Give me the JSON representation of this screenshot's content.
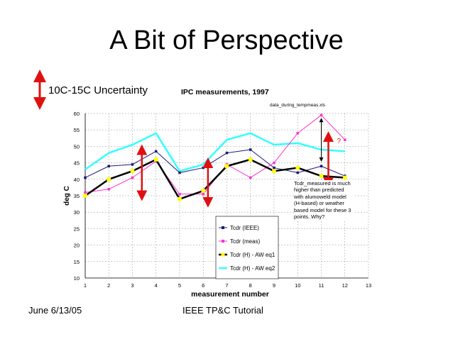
{
  "slide": {
    "title": "A Bit of Perspective",
    "uncertainty_label": "10C-15C Uncertainty",
    "footer_left": "June 6/13/05",
    "footer_center": "IEEE TP&C Tutorial"
  },
  "colors": {
    "ieee": "#1a1a7a",
    "meas": "#ff33cc",
    "aw_eq1": "#000000",
    "aw_eq1_marker": "#ffff00",
    "aw_eq2": "#33ffff",
    "arrow": "#e01010",
    "grid": "#999999"
  },
  "chart_data": {
    "type": "line",
    "title": "IPC measurements, 1997",
    "subtitle": "data_during_tempmeas.xls",
    "xlabel": "measurement number",
    "ylabel": "deg C",
    "xlim": [
      1,
      13
    ],
    "ylim": [
      10,
      60
    ],
    "x_ticks": [
      1,
      2,
      3,
      4,
      5,
      6,
      7,
      8,
      9,
      10,
      11,
      12,
      13
    ],
    "y_ticks": [
      10,
      15,
      20,
      25,
      30,
      35,
      40,
      45,
      50,
      55,
      60
    ],
    "x": [
      1,
      2,
      3,
      4,
      5,
      6,
      7,
      8,
      9,
      10,
      11,
      12
    ],
    "series": [
      {
        "name": "Tcdr (IEEE)",
        "values": [
          40.5,
          44,
          44.5,
          48.5,
          42,
          43.5,
          48,
          49,
          43.5,
          42,
          44,
          41
        ]
      },
      {
        "name": "Tcdr (meas)",
        "values": [
          36,
          37,
          40.5,
          45.5,
          35.5,
          35.5,
          44.5,
          40.5,
          45,
          54,
          59.5,
          52
        ]
      },
      {
        "name": "Tcdr (H) - AW eq1",
        "values": [
          35,
          40,
          42.5,
          46,
          34,
          36.5,
          44,
          46,
          42.5,
          43.5,
          41,
          40.5
        ]
      },
      {
        "name": "Tcdr (H) - AW eq2",
        "values": [
          43,
          48,
          50.5,
          54,
          42.5,
          44.5,
          52,
          54,
          50.5,
          51,
          49,
          48.5
        ]
      }
    ],
    "uncertainty_arrows": [
      {
        "x": 3.4,
        "y_from": 35,
        "y_to": 49
      },
      {
        "x": 6.2,
        "y_from": 33,
        "y_to": 45
      },
      {
        "x": 11.3,
        "y_from": 39,
        "y_to": 53
      }
    ],
    "gap_arrow": {
      "x": 11.0,
      "y_from": 58,
      "y_to": 46,
      "label": "?"
    },
    "annotation": "Tcdr_measured is much higher than predicted with alumoweld model (H-based) or weather based model for these 3 points.  Why?"
  }
}
